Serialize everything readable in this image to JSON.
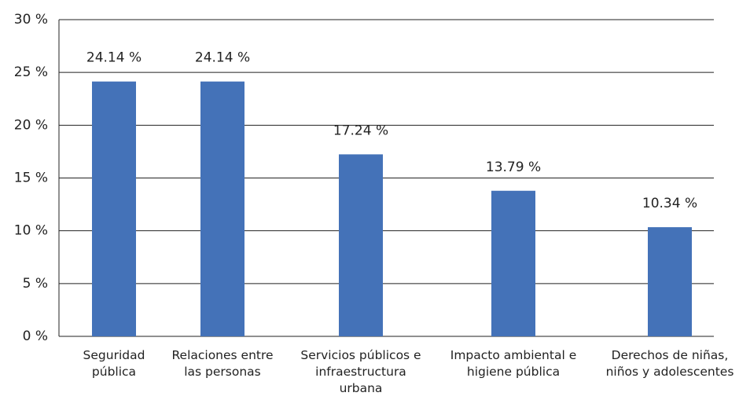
{
  "chart_data": {
    "type": "bar",
    "categories": [
      "Seguridad\npública",
      "Relaciones entre\nlas personas",
      "Servicios públicos e\ninfraestructura\nurbana",
      "Impacto ambiental e\nhigiene pública",
      "Derechos de niñas,\nniños y adolescentes"
    ],
    "values": [
      24.14,
      24.14,
      17.24,
      13.79,
      10.34
    ],
    "value_labels": [
      "24.14 %",
      "24.14 %",
      "17.24 %",
      "13.79 %",
      "10.34 %"
    ],
    "color": "#4472b8",
    "ylim": [
      0,
      30
    ],
    "yticks": [
      {
        "value": 0,
        "label": "0 %"
      },
      {
        "value": 5,
        "label": "5 %"
      },
      {
        "value": 10,
        "label": "10 %"
      },
      {
        "value": 15,
        "label": "15 %"
      },
      {
        "value": 20,
        "label": "20 %"
      },
      {
        "value": 25,
        "label": "25 %"
      },
      {
        "value": 30,
        "label": "30 %"
      }
    ],
    "grid": true
  }
}
